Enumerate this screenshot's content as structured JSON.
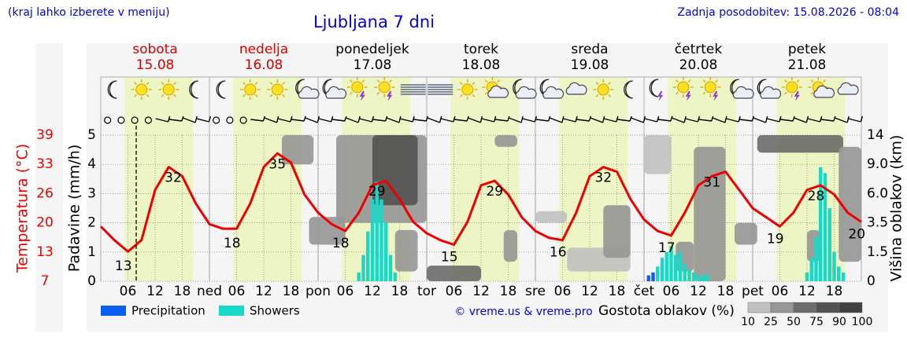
{
  "header": {
    "hint": "(kraj lahko izberete v meniju)",
    "title": "Ljubljana 7 dni",
    "updated": "Zadnja posodobitev: 15.08.2026 - 08:04",
    "credit": "© vreme.us & vreme.pro"
  },
  "days": [
    {
      "name": "sobota",
      "date": "15.08",
      "color": "#e00000"
    },
    {
      "name": "nedelja",
      "date": "16.08",
      "color": "#e00000"
    },
    {
      "name": "ponedeljek",
      "date": "17.08",
      "color": "#000000"
    },
    {
      "name": "torek",
      "date": "18.08",
      "color": "#000000"
    },
    {
      "name": "sreda",
      "date": "19.08",
      "color": "#000000"
    },
    {
      "name": "četrtek",
      "date": "20.08",
      "color": "#000000"
    },
    {
      "name": "petek",
      "date": "21.08",
      "color": "#000000"
    }
  ],
  "chart_data": [
    {
      "type": "line",
      "ylabel": "Temperatura (°C)",
      "color": "#ee0000",
      "xlim": [
        0,
        168
      ],
      "ylim": [
        7,
        39
      ],
      "yticks": [
        7,
        {
          "value": 13.4,
          "label": "13"
        },
        {
          "value": 19.8,
          "label": "20"
        },
        {
          "value": 26.2,
          "label": "26"
        },
        {
          "value": 32.6,
          "label": "33"
        },
        39
      ],
      "x": [
        0,
        3,
        6,
        9,
        12,
        15,
        18,
        21,
        24,
        27,
        30,
        33,
        36,
        39,
        42,
        45,
        48,
        51,
        54,
        57,
        60,
        63,
        66,
        69,
        72,
        75,
        78,
        81,
        84,
        87,
        90,
        93,
        96,
        99,
        102,
        105,
        108,
        111,
        114,
        117,
        120,
        123,
        126,
        129,
        132,
        135,
        138,
        141,
        144,
        147,
        150,
        153,
        156,
        159,
        162,
        165,
        168
      ],
      "values": [
        19,
        16,
        13.5,
        16,
        27,
        32,
        30,
        24,
        19.5,
        18.5,
        18.5,
        24,
        32,
        35,
        33,
        26,
        22,
        19.5,
        18,
        22,
        28,
        29,
        25,
        20,
        17.5,
        16,
        15,
        20,
        28,
        29,
        26,
        21,
        18,
        16.5,
        16,
        22,
        30,
        32,
        31,
        25,
        20.5,
        18,
        17,
        22,
        28,
        30,
        31,
        27,
        23,
        21,
        19,
        22,
        27,
        28,
        26,
        22,
        20
      ],
      "annotations": [
        {
          "x": 5,
          "value": 13
        },
        {
          "x": 16,
          "value": 32
        },
        {
          "x": 29,
          "value": 18
        },
        {
          "x": 39,
          "value": 35
        },
        {
          "x": 53,
          "value": 18
        },
        {
          "x": 61,
          "value": 29
        },
        {
          "x": 77,
          "value": 15
        },
        {
          "x": 87,
          "value": 29
        },
        {
          "x": 101,
          "value": 16
        },
        {
          "x": 111,
          "value": 32
        },
        {
          "x": 125,
          "value": 17
        },
        {
          "x": 135,
          "value": 31
        },
        {
          "x": 149,
          "value": 19
        },
        {
          "x": 158,
          "value": 28
        },
        {
          "x": 167,
          "value": 20
        }
      ]
    },
    {
      "type": "bar",
      "ylabel": "Padavine (mm/h)",
      "xlim": [
        0,
        168
      ],
      "ylim": [
        0,
        5
      ],
      "yticks": [
        0,
        1,
        2,
        3,
        4,
        5
      ],
      "grid": true,
      "xticks": [
        {
          "value": 6,
          "label": "06"
        },
        {
          "value": 12,
          "label": "12"
        },
        {
          "value": 18,
          "label": "18"
        },
        {
          "value": 24,
          "label": "ned"
        },
        {
          "value": 30,
          "label": "06"
        },
        {
          "value": 36,
          "label": "12"
        },
        {
          "value": 42,
          "label": "18"
        },
        {
          "value": 48,
          "label": "pon"
        },
        {
          "value": 54,
          "label": "06"
        },
        {
          "value": 60,
          "label": "12"
        },
        {
          "value": 66,
          "label": "18"
        },
        {
          "value": 72,
          "label": "tor"
        },
        {
          "value": 78,
          "label": "06"
        },
        {
          "value": 84,
          "label": "12"
        },
        {
          "value": 90,
          "label": "18"
        },
        {
          "value": 96,
          "label": "sre"
        },
        {
          "value": 102,
          "label": "06"
        },
        {
          "value": 108,
          "label": "12"
        },
        {
          "value": 114,
          "label": "18"
        },
        {
          "value": 120,
          "label": "čet"
        },
        {
          "value": 126,
          "label": "06"
        },
        {
          "value": 132,
          "label": "12"
        },
        {
          "value": 138,
          "label": "18"
        },
        {
          "value": 144,
          "label": "pet"
        },
        {
          "value": 150,
          "label": "06"
        },
        {
          "value": 156,
          "label": "12"
        },
        {
          "value": 162,
          "label": "18"
        }
      ],
      "series": [
        {
          "name": "Precipitation",
          "color": "#0a5ff0",
          "x": [
            121,
            122
          ],
          "values": [
            0.2,
            0.3
          ]
        },
        {
          "name": "Showers",
          "color": "#18d8c8",
          "x": [
            57,
            58,
            59,
            60,
            61,
            62,
            63,
            64,
            65,
            123,
            124,
            125,
            126,
            127,
            128,
            129,
            130,
            131,
            132,
            133,
            134,
            156,
            157,
            158,
            159,
            160,
            161,
            162,
            163,
            164
          ],
          "values": [
            0.3,
            0.9,
            1.7,
            2.8,
            3.4,
            2.8,
            2.0,
            0.9,
            0.3,
            0.5,
            0.8,
            1.0,
            1.2,
            0.9,
            1.0,
            0.6,
            0.4,
            0.3,
            0.2,
            0.2,
            0.2,
            0.3,
            0.8,
            1.5,
            3.9,
            3.7,
            2.5,
            1.0,
            0.5,
            0.3
          ]
        }
      ]
    },
    {
      "type": "heatmap",
      "y2label": "Višina oblakov (km)",
      "legend_title": "Gostota oblakov (%)",
      "legend_ticks": [
        10,
        25,
        50,
        75,
        90,
        100
      ],
      "y2ticks": [
        0,
        1.5,
        3.5,
        {
          "value": 6,
          "label": "6.0"
        },
        {
          "value": 9,
          "label": "9.0"
        },
        14
      ],
      "cells": [
        {
          "x0": 40,
          "x1": 47,
          "h0": 9,
          "h1": 14,
          "density": 50
        },
        {
          "x0": 52,
          "x1": 72,
          "h0": 3.5,
          "h1": 14,
          "density": 50
        },
        {
          "x0": 60,
          "x1": 70,
          "h0": 5,
          "h1": 14,
          "density": 90
        },
        {
          "x0": 46,
          "x1": 54,
          "h0": 2,
          "h1": 4,
          "density": 50
        },
        {
          "x0": 65,
          "x1": 70,
          "h0": 0.5,
          "h1": 3,
          "density": 50
        },
        {
          "x0": 72,
          "x1": 84,
          "h0": 0,
          "h1": 0.8,
          "density": 75
        },
        {
          "x0": 87,
          "x1": 92,
          "h0": 12,
          "h1": 14,
          "density": 50
        },
        {
          "x0": 89,
          "x1": 92,
          "h0": 1,
          "h1": 3,
          "density": 50
        },
        {
          "x0": 96,
          "x1": 103,
          "h0": 3.5,
          "h1": 4.5,
          "density": 25
        },
        {
          "x0": 103,
          "x1": 117,
          "h0": 0.5,
          "h1": 1.8,
          "density": 25
        },
        {
          "x0": 111,
          "x1": 117,
          "h0": 1.2,
          "h1": 5,
          "density": 50
        },
        {
          "x0": 120,
          "x1": 126,
          "h0": 8,
          "h1": 14,
          "density": 25
        },
        {
          "x0": 131,
          "x1": 138,
          "h0": 0,
          "h1": 12,
          "density": 50
        },
        {
          "x0": 127,
          "x1": 131,
          "h0": 0.5,
          "h1": 2.2,
          "density": 50
        },
        {
          "x0": 145,
          "x1": 164,
          "h0": 11,
          "h1": 14,
          "density": 75
        },
        {
          "x0": 140,
          "x1": 145,
          "h0": 2,
          "h1": 3.5,
          "density": 50
        },
        {
          "x0": 163,
          "x1": 168,
          "h0": 1,
          "h1": 12,
          "density": 50
        },
        {
          "x0": 156,
          "x1": 159,
          "h0": 1,
          "h1": 3,
          "density": 50
        }
      ]
    }
  ]
}
